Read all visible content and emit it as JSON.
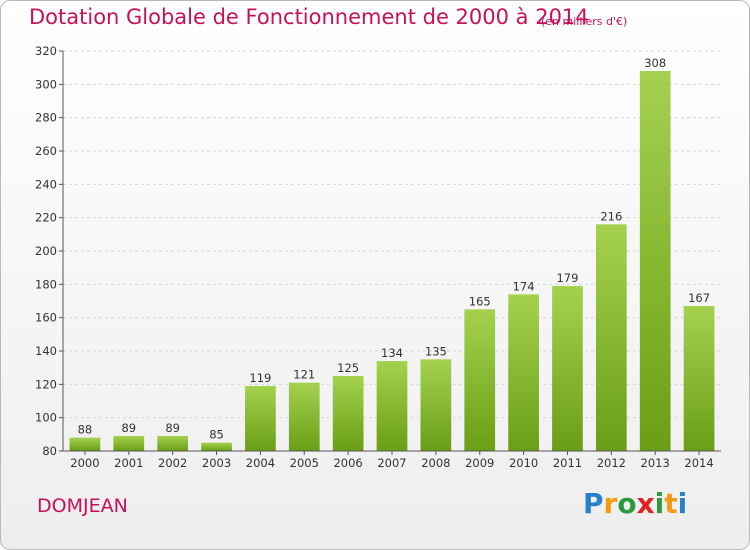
{
  "header": {
    "title": "Dotation Globale de Fonctionnement de 2000 à 2014",
    "subtitle": "(en milliers d'€)"
  },
  "footer": {
    "commune": "DOMJEAN",
    "logo_letters": [
      "P",
      "r",
      "o",
      "x",
      "i",
      "t",
      "i"
    ],
    "logo_colors": [
      "#2a7fc9",
      "#f39c12",
      "#2a9a3c",
      "#e2221f",
      "#2a9a3c",
      "#f39c12",
      "#2a7fc9"
    ]
  },
  "colors": {
    "bar_top": "#a4d24f",
    "bar_bottom": "#6a9e16",
    "title": "#c8105a",
    "grid": "#d6d6d6"
  },
  "chart_data": {
    "type": "bar",
    "categories": [
      "2000",
      "2001",
      "2002",
      "2003",
      "2004",
      "2005",
      "2006",
      "2007",
      "2008",
      "2009",
      "2010",
      "2011",
      "2012",
      "2013",
      "2014"
    ],
    "values": [
      88,
      89,
      89,
      85,
      119,
      121,
      125,
      134,
      135,
      165,
      174,
      179,
      216,
      308,
      167
    ],
    "ylim": [
      80,
      320
    ],
    "yticks": [
      80,
      100,
      120,
      140,
      160,
      180,
      200,
      220,
      240,
      260,
      280,
      300,
      320
    ],
    "title": "Dotation Globale de Fonctionnement de 2000 à 2014",
    "subtitle": "(en milliers d'€)",
    "xlabel": "",
    "ylabel": "",
    "grid": true,
    "data_labels": true
  }
}
